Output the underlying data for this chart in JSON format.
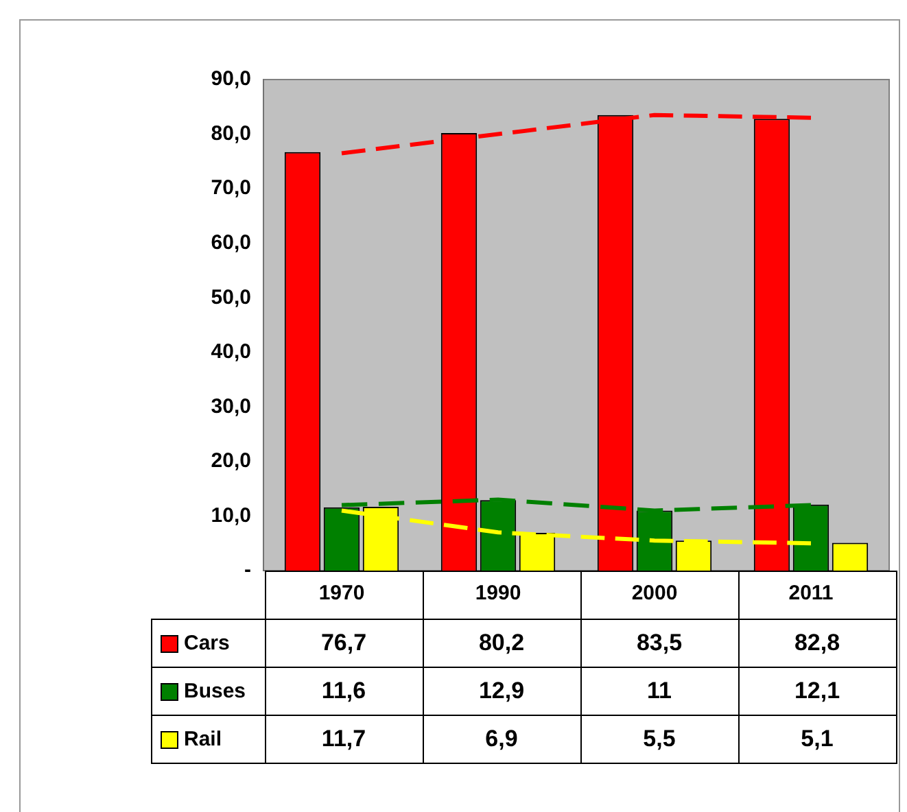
{
  "chart_data": {
    "type": "bar",
    "categories": [
      "1970",
      "1990",
      "2000",
      "2011"
    ],
    "series": [
      {
        "name": "Cars",
        "color": "#ff0000",
        "values": [
          76.7,
          80.2,
          83.5,
          82.8
        ],
        "value_labels": [
          "76,7",
          "80,2",
          "83,5",
          "82,8"
        ]
      },
      {
        "name": "Buses",
        "color": "#008000",
        "values": [
          11.6,
          12.9,
          11,
          12.1
        ],
        "value_labels": [
          "11,6",
          "12,9",
          "11",
          "12,1"
        ]
      },
      {
        "name": "Rail",
        "color": "#ffff00",
        "values": [
          11.7,
          6.9,
          5.5,
          5.1
        ],
        "value_labels": [
          "11,7",
          "6,9",
          "5,5",
          "5,1"
        ]
      },
      {
        "type": "line",
        "color": "#ff0000",
        "line_style": "dashed",
        "values": [
          76.5,
          80,
          83.5,
          83
        ]
      },
      {
        "type": "line",
        "color": "#008000",
        "line_style": "dashed",
        "values": [
          12,
          13,
          11,
          12
        ]
      },
      {
        "type": "line",
        "color": "#ffff00",
        "line_style": "dashed",
        "values": [
          11,
          7,
          5.5,
          5
        ]
      }
    ],
    "ylim": [
      0,
      90
    ],
    "yticks": [
      {
        "value": 0,
        "label": "-"
      },
      {
        "value": 10,
        "label": "10,0"
      },
      {
        "value": 20,
        "label": "20,0"
      },
      {
        "value": 30,
        "label": "30,0"
      },
      {
        "value": 40,
        "label": "40,0"
      },
      {
        "value": 50,
        "label": "50,0"
      },
      {
        "value": 60,
        "label": "60,0"
      },
      {
        "value": 70,
        "label": "70,0"
      },
      {
        "value": 80,
        "label": "80,0"
      },
      {
        "value": 90,
        "label": "90,0"
      }
    ],
    "grid": false,
    "legend": "bottom"
  }
}
